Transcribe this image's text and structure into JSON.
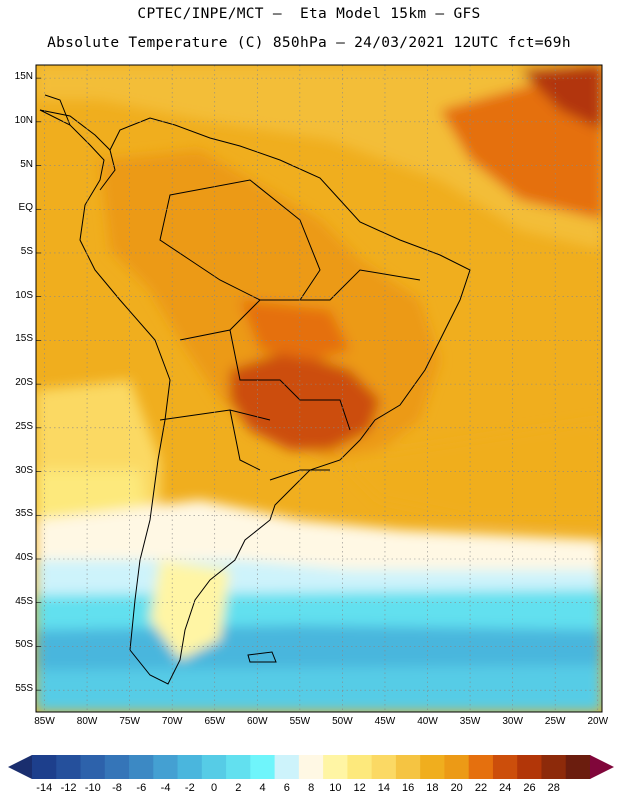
{
  "header": {
    "line1": "CPTEC/INPE/MCT –  Eta Model 15km – GFS",
    "line2": "Absolute Temperature (C) 850hPa – 24/03/2021 12UTC fct=69h"
  },
  "map": {
    "lat_labels": [
      "15N",
      "10N",
      "5N",
      "EQ",
      "5S",
      "10S",
      "15S",
      "20S",
      "25S",
      "30S",
      "35S",
      "40S",
      "45S",
      "50S",
      "55S"
    ],
    "lon_labels": [
      "85W",
      "80W",
      "75W",
      "70W",
      "65W",
      "60W",
      "55W",
      "50W",
      "45W",
      "40W",
      "35W",
      "30W",
      "25W",
      "20W"
    ],
    "extent": {
      "lon_min": -86,
      "lon_max": -19.5,
      "lat_min": -57.5,
      "lat_max": 16.5
    }
  },
  "colorbar": {
    "labels": [
      "-14",
      "-12",
      "-10",
      "-8",
      "-6",
      "-4",
      "-2",
      "0",
      "2",
      "4",
      "6",
      "8",
      "10",
      "12",
      "14",
      "16",
      "18",
      "20",
      "22",
      "24",
      "26",
      "28"
    ],
    "colors": [
      "#1d3f8c",
      "#25509c",
      "#2d62ab",
      "#3575b8",
      "#3c89c4",
      "#44a0d2",
      "#4ab6dd",
      "#56cce6",
      "#62e0ef",
      "#6ff5fb",
      "#cdf3fb",
      "#fff8e4",
      "#fff5a4",
      "#fde97c",
      "#fbd964",
      "#f5c442",
      "#f0ae1e",
      "#ec9a16",
      "#e5700e",
      "#cc4e0b",
      "#b23608",
      "#8d2a0a",
      "#6b1d0e"
    ],
    "under_color": "#1a2e6e",
    "over_color": "#80063a"
  }
}
